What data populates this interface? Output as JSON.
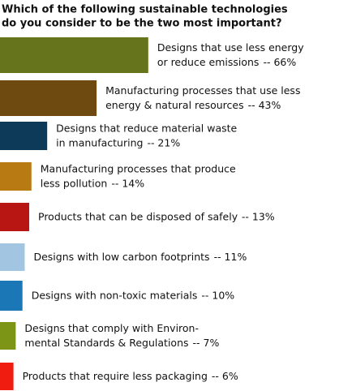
{
  "chart_data": {
    "type": "bar",
    "title": [
      "Which of the following sustainable technologies",
      "do you consider to be the two most important?"
    ],
    "categories": [
      [
        "Designs that use less energy",
        "or reduce emissions"
      ],
      [
        "Manufacturing processes that use less",
        "energy & natural resources"
      ],
      [
        "Designs that reduce material waste",
        "in manufacturing"
      ],
      [
        "Manufacturing processes that produce",
        "less pollution"
      ],
      [
        "Products that can be disposed of safely"
      ],
      [
        "Designs with low carbon footprints"
      ],
      [
        "Designs with non-toxic materials"
      ],
      [
        "Designs that comply with Environ-",
        "mental Standards & Regulations"
      ],
      [
        "Products that require less packaging"
      ]
    ],
    "values": [
      66,
      43,
      21,
      14,
      13,
      11,
      10,
      7,
      6
    ],
    "value_labels": [
      "-- 66%",
      "-- 43%",
      "-- 21%",
      "-- 14%",
      "-- 13%",
      "-- 11%",
      "-- 10%",
      "-- 7%",
      "-- 6%"
    ],
    "colors": [
      "#66751c",
      "#6e4a10",
      "#0c3a58",
      "#b87a12",
      "#b81612",
      "#a2c6e2",
      "#1b77b6",
      "#7c9516",
      "#f01c10"
    ]
  }
}
